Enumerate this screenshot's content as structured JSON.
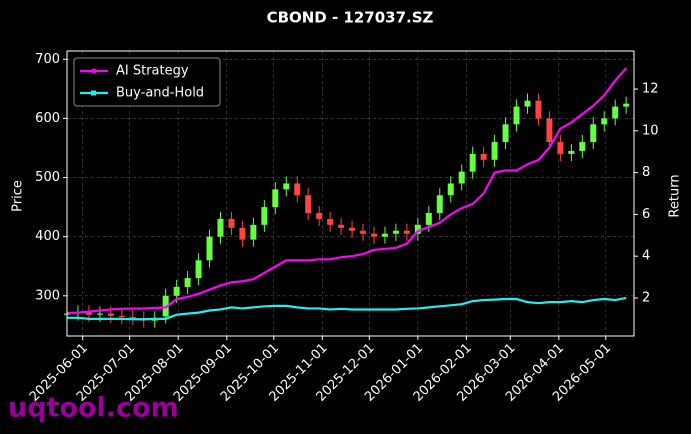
{
  "chart_data": {
    "type": "candlestick",
    "title": "CBOND - 127037.SZ",
    "ylabel": "Price",
    "y2label": "Return",
    "watermark": "uqtool.com",
    "x": [
      "2025-05-22",
      "2025-05-29",
      "2025-06-05",
      "2025-06-12",
      "2025-06-19",
      "2025-06-26",
      "2025-07-03",
      "2025-07-10",
      "2025-07-17",
      "2025-07-24",
      "2025-07-31",
      "2025-08-07",
      "2025-08-14",
      "2025-08-21",
      "2025-08-28",
      "2025-09-04",
      "2025-09-11",
      "2025-09-18",
      "2025-09-25",
      "2025-10-02",
      "2025-10-09",
      "2025-10-16",
      "2025-10-23",
      "2025-10-30",
      "2025-11-06",
      "2025-11-13",
      "2025-11-20",
      "2025-11-27",
      "2025-12-04",
      "2025-12-11",
      "2025-12-18",
      "2025-12-25",
      "2026-01-01",
      "2026-01-08",
      "2026-01-15",
      "2026-01-22",
      "2026-01-29",
      "2026-02-05",
      "2026-02-12",
      "2026-02-19",
      "2026-02-26",
      "2026-03-05",
      "2026-03-12",
      "2026-03-19",
      "2026-03-26",
      "2026-04-02",
      "2026-04-09",
      "2026-04-16",
      "2026-04-23",
      "2026-04-30",
      "2026-05-07",
      "2026-05-14"
    ],
    "open": [
      268,
      270,
      272,
      268,
      270,
      266,
      264,
      262,
      258,
      265,
      300,
      315,
      330,
      360,
      400,
      430,
      415,
      395,
      420,
      450,
      480,
      490,
      470,
      440,
      430,
      420,
      415,
      410,
      405,
      400,
      405,
      410,
      405,
      420,
      440,
      470,
      490,
      510,
      540,
      530,
      560,
      590,
      620,
      630,
      600,
      560,
      540,
      545,
      560,
      590,
      600,
      620
    ],
    "high": [
      282,
      284,
      284,
      282,
      282,
      278,
      276,
      274,
      274,
      312,
      327,
      342,
      372,
      412,
      442,
      442,
      427,
      432,
      462,
      492,
      502,
      502,
      482,
      452,
      442,
      432,
      427,
      422,
      417,
      417,
      422,
      422,
      432,
      452,
      482,
      502,
      522,
      552,
      552,
      572,
      602,
      632,
      642,
      642,
      612,
      572,
      557,
      572,
      602,
      612,
      632,
      637
    ],
    "low": [
      256,
      258,
      256,
      256,
      254,
      252,
      250,
      246,
      246,
      253,
      288,
      303,
      318,
      348,
      388,
      403,
      383,
      383,
      408,
      438,
      468,
      458,
      428,
      418,
      408,
      403,
      398,
      393,
      388,
      388,
      393,
      393,
      393,
      408,
      428,
      458,
      478,
      498,
      518,
      518,
      548,
      578,
      608,
      588,
      548,
      528,
      528,
      533,
      548,
      578,
      588,
      608
    ],
    "close": [
      270,
      272,
      268,
      270,
      266,
      264,
      262,
      258,
      262,
      300,
      315,
      330,
      360,
      400,
      430,
      415,
      395,
      420,
      450,
      480,
      490,
      470,
      440,
      430,
      420,
      415,
      410,
      405,
      400,
      405,
      410,
      405,
      420,
      440,
      470,
      490,
      510,
      540,
      530,
      560,
      590,
      620,
      630,
      600,
      560,
      540,
      545,
      560,
      590,
      600,
      620,
      625
    ],
    "up_color": "#66ff44",
    "down_color": "#ff4444",
    "series": [
      {
        "name": "AI Strategy",
        "color": "#ff00ff",
        "axis": "y2",
        "marker": "dot",
        "values": [
          1.28,
          1.3,
          1.35,
          1.4,
          1.45,
          1.48,
          1.5,
          1.5,
          1.52,
          1.55,
          1.95,
          2.05,
          2.2,
          2.4,
          2.6,
          2.75,
          2.8,
          2.9,
          3.2,
          3.5,
          3.8,
          3.8,
          3.8,
          3.85,
          3.85,
          3.95,
          4.0,
          4.1,
          4.3,
          4.35,
          4.4,
          4.6,
          5.2,
          5.4,
          5.6,
          6.0,
          6.3,
          6.5,
          7.0,
          8.0,
          8.1,
          8.1,
          8.4,
          8.6,
          9.2,
          10.1,
          10.4,
          10.8,
          11.2,
          11.7,
          12.4,
          13.0
        ]
      },
      {
        "name": "Buy-and-Hold",
        "color": "#22eeee",
        "axis": "y2",
        "marker": "square",
        "values": [
          1.05,
          1.05,
          1.0,
          1.0,
          1.0,
          1.0,
          0.98,
          0.98,
          1.0,
          1.0,
          1.2,
          1.25,
          1.3,
          1.4,
          1.45,
          1.55,
          1.5,
          1.55,
          1.6,
          1.62,
          1.62,
          1.55,
          1.5,
          1.5,
          1.45,
          1.48,
          1.45,
          1.45,
          1.45,
          1.45,
          1.45,
          1.48,
          1.5,
          1.55,
          1.6,
          1.65,
          1.7,
          1.85,
          1.9,
          1.92,
          1.95,
          1.95,
          1.8,
          1.75,
          1.8,
          1.8,
          1.85,
          1.8,
          1.9,
          1.95,
          1.9,
          2.0
        ]
      }
    ],
    "xlim": [
      "2025-05-22",
      "2026-05-19"
    ],
    "xticks": [
      "2025-06-01",
      "2025-07-01",
      "2025-08-01",
      "2025-09-01",
      "2025-10-01",
      "2025-11-01",
      "2025-12-01",
      "2026-01-01",
      "2026-02-01",
      "2026-03-01",
      "2026-04-01",
      "2026-05-01"
    ],
    "ylim": [
      232,
      714
    ],
    "yticks": [
      300,
      400,
      500,
      600,
      700
    ],
    "y2lim": [
      0.18,
      13.82
    ],
    "y2ticks": [
      2,
      4,
      6,
      8,
      10,
      12
    ],
    "grid": true,
    "legend": "upper left"
  }
}
